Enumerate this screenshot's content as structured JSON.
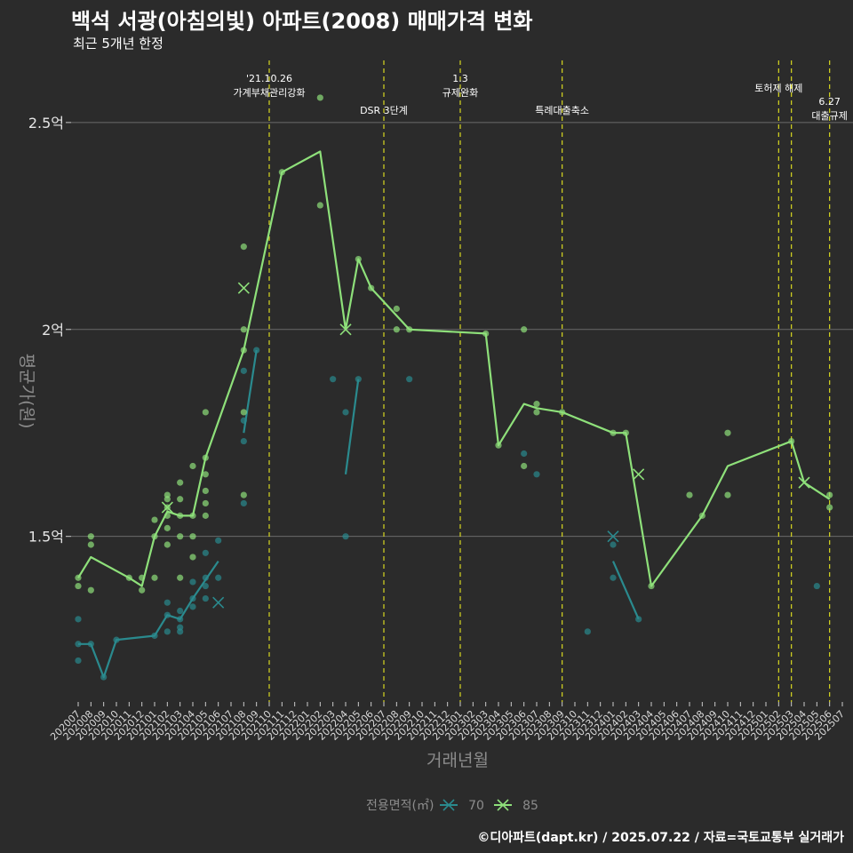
{
  "header": {
    "title": "백석 서광(아침의빛) 아파트(2008) 매매가격 변화",
    "subtitle": "최근 5개년 한정"
  },
  "caption": "©디아파트(dapt.kr) / 2025.07.22 / 자료=국토교통부 실거래가",
  "colors": {
    "series70": "#2a8a8e",
    "series85": "#8ee07a",
    "event": "#d8d820",
    "grid": "#6b6b6b",
    "bg": "#2b2b2b"
  },
  "chart_data": {
    "type": "line",
    "title": "백석 서광(아침의빛) 아파트(2008) 매매가격 변화",
    "subtitle": "최근 5개년 한정",
    "xlabel": "거래년월",
    "ylabel": "평균가(원)",
    "ylim": [
      1.1,
      2.65
    ],
    "y_ticks": [
      {
        "value": 1.5,
        "label": "1.5억"
      },
      {
        "value": 2.0,
        "label": "2억"
      },
      {
        "value": 2.5,
        "label": "2.5억"
      }
    ],
    "x_ticks": [
      "202007",
      "202008",
      "202009",
      "202010",
      "202011",
      "202012",
      "202101",
      "202102",
      "202103",
      "202104",
      "202105",
      "202106",
      "202107",
      "202108",
      "202109",
      "202110",
      "202111",
      "202112",
      "202201",
      "202202",
      "202203",
      "202204",
      "202205",
      "202206",
      "202207",
      "202208",
      "202209",
      "202210",
      "202211",
      "202212",
      "202301",
      "202302",
      "202303",
      "202304",
      "202305",
      "202306",
      "202307",
      "202308",
      "202309",
      "202310",
      "202311",
      "202312",
      "202401",
      "202402",
      "202403",
      "202404",
      "202405",
      "202406",
      "202407",
      "202408",
      "202409",
      "202410",
      "202411",
      "202412",
      "202501",
      "202502",
      "202503",
      "202504",
      "202505",
      "202506",
      "202507"
    ],
    "legend": {
      "title": "전용면적(㎡)",
      "position": "bottom",
      "entries": [
        "70",
        "85"
      ]
    },
    "grid": true,
    "events": [
      {
        "x": "202110",
        "label_lines": [
          "'21.10.26",
          "가계부채관리강화"
        ]
      },
      {
        "x": "202207",
        "label_lines": [
          "DSR 3단계"
        ]
      },
      {
        "x": "202301",
        "label_lines": [
          "1.3",
          "규제완화"
        ]
      },
      {
        "x": "202309",
        "label_lines": [
          "특례대출축소"
        ]
      },
      {
        "x": "202502",
        "label_lines": [
          "토허제 해제"
        ]
      },
      {
        "x": "202503",
        "label_lines": []
      },
      {
        "x": "202506",
        "label_lines": [
          "6.27",
          "대출규제"
        ]
      }
    ],
    "series": [
      {
        "name": "70",
        "lines": [
          [
            [
              "202007",
              1.24
            ],
            [
              "202008",
              1.24
            ],
            [
              "202009",
              1.16
            ],
            [
              "202010",
              1.25
            ],
            [
              "202101",
              1.26
            ],
            [
              "202102",
              1.31
            ],
            [
              "202103",
              1.3
            ],
            [
              "202104",
              1.35
            ],
            [
              "202106",
              1.44
            ]
          ],
          [
            [
              "202108",
              1.75
            ],
            [
              "202109",
              1.95
            ]
          ],
          [
            [
              "202204",
              1.65
            ],
            [
              "202205",
              1.88
            ]
          ],
          [
            [
              "202401",
              1.44
            ],
            [
              "202403",
              1.3
            ]
          ]
        ],
        "points": [
          [
            "202007",
            1.3
          ],
          [
            "202007",
            1.24
          ],
          [
            "202007",
            1.2
          ],
          [
            "202008",
            1.24
          ],
          [
            "202009",
            1.16
          ],
          [
            "202010",
            1.25
          ],
          [
            "202101",
            1.26
          ],
          [
            "202102",
            1.27
          ],
          [
            "202102",
            1.31
          ],
          [
            "202102",
            1.34
          ],
          [
            "202103",
            1.3
          ],
          [
            "202103",
            1.28
          ],
          [
            "202103",
            1.27
          ],
          [
            "202103",
            1.32
          ],
          [
            "202104",
            1.33
          ],
          [
            "202104",
            1.35
          ],
          [
            "202104",
            1.39
          ],
          [
            "202105",
            1.35
          ],
          [
            "202105",
            1.38
          ],
          [
            "202105",
            1.4
          ],
          [
            "202105",
            1.46
          ],
          [
            "202106",
            1.4
          ],
          [
            "202106",
            1.49
          ],
          [
            "202108",
            1.58
          ],
          [
            "202108",
            1.73
          ],
          [
            "202108",
            1.78
          ],
          [
            "202108",
            1.9
          ],
          [
            "202109",
            1.95
          ],
          [
            "202203",
            1.88
          ],
          [
            "202204",
            1.5
          ],
          [
            "202204",
            1.8
          ],
          [
            "202205",
            1.88
          ],
          [
            "202209",
            1.88
          ],
          [
            "202306",
            1.7
          ],
          [
            "202307",
            1.65
          ],
          [
            "202311",
            1.27
          ],
          [
            "202401",
            1.4
          ],
          [
            "202401",
            1.48
          ],
          [
            "202403",
            1.3
          ],
          [
            "202505",
            1.38
          ]
        ],
        "means": [
          [
            "202106",
            1.34
          ],
          [
            "202401",
            1.5
          ]
        ]
      },
      {
        "name": "85",
        "lines": [
          [
            [
              "202007",
              1.4
            ],
            [
              "202008",
              1.45
            ],
            [
              "202011",
              1.4
            ],
            [
              "202012",
              1.38
            ],
            [
              "202101",
              1.5
            ],
            [
              "202102",
              1.56
            ],
            [
              "202103",
              1.55
            ],
            [
              "202104",
              1.55
            ],
            [
              "202105",
              1.69
            ],
            [
              "202108",
              1.95
            ],
            [
              "202111",
              2.38
            ],
            [
              "202202",
              2.43
            ],
            [
              "202204",
              2.0
            ],
            [
              "202205",
              2.17
            ],
            [
              "202206",
              2.1
            ],
            [
              "202209",
              2.0
            ],
            [
              "202303",
              1.99
            ],
            [
              "202304",
              1.72
            ],
            [
              "202306",
              1.82
            ],
            [
              "202307",
              1.81
            ],
            [
              "202309",
              1.8
            ],
            [
              "202401",
              1.75
            ],
            [
              "202402",
              1.75
            ],
            [
              "202404",
              1.38
            ],
            [
              "202408",
              1.55
            ],
            [
              "202410",
              1.67
            ],
            [
              "202503",
              1.73
            ],
            [
              "202504",
              1.63
            ],
            [
              "202506",
              1.59
            ]
          ]
        ],
        "points": [
          [
            "202007",
            1.38
          ],
          [
            "202007",
            1.4
          ],
          [
            "202008",
            1.37
          ],
          [
            "202008",
            1.48
          ],
          [
            "202008",
            1.5
          ],
          [
            "202011",
            1.4
          ],
          [
            "202012",
            1.37
          ],
          [
            "202012",
            1.4
          ],
          [
            "202101",
            1.4
          ],
          [
            "202101",
            1.5
          ],
          [
            "202101",
            1.54
          ],
          [
            "202102",
            1.48
          ],
          [
            "202102",
            1.52
          ],
          [
            "202102",
            1.55
          ],
          [
            "202102",
            1.57
          ],
          [
            "202102",
            1.59
          ],
          [
            "202102",
            1.6
          ],
          [
            "202103",
            1.4
          ],
          [
            "202103",
            1.5
          ],
          [
            "202103",
            1.55
          ],
          [
            "202103",
            1.59
          ],
          [
            "202103",
            1.63
          ],
          [
            "202104",
            1.45
          ],
          [
            "202104",
            1.5
          ],
          [
            "202104",
            1.55
          ],
          [
            "202104",
            1.67
          ],
          [
            "202105",
            1.55
          ],
          [
            "202105",
            1.58
          ],
          [
            "202105",
            1.61
          ],
          [
            "202105",
            1.65
          ],
          [
            "202105",
            1.69
          ],
          [
            "202105",
            1.8
          ],
          [
            "202108",
            1.6
          ],
          [
            "202108",
            1.8
          ],
          [
            "202108",
            1.95
          ],
          [
            "202108",
            2.0
          ],
          [
            "202108",
            2.2
          ],
          [
            "202111",
            2.38
          ],
          [
            "202202",
            2.3
          ],
          [
            "202202",
            2.56
          ],
          [
            "202205",
            2.17
          ],
          [
            "202206",
            2.1
          ],
          [
            "202208",
            2.0
          ],
          [
            "202208",
            2.05
          ],
          [
            "202209",
            2.0
          ],
          [
            "202303",
            1.99
          ],
          [
            "202304",
            1.72
          ],
          [
            "202306",
            1.67
          ],
          [
            "202306",
            2.0
          ],
          [
            "202307",
            1.8
          ],
          [
            "202307",
            1.82
          ],
          [
            "202309",
            1.8
          ],
          [
            "202401",
            1.75
          ],
          [
            "202402",
            1.75
          ],
          [
            "202404",
            1.38
          ],
          [
            "202407",
            1.6
          ],
          [
            "202408",
            1.55
          ],
          [
            "202410",
            1.6
          ],
          [
            "202410",
            1.75
          ],
          [
            "202503",
            1.73
          ],
          [
            "202506",
            1.57
          ],
          [
            "202506",
            1.6
          ]
        ],
        "means": [
          [
            "202102",
            1.57
          ],
          [
            "202108",
            2.1
          ],
          [
            "202204",
            2.0
          ],
          [
            "202403",
            1.65
          ],
          [
            "202504",
            1.63
          ]
        ]
      }
    ]
  }
}
